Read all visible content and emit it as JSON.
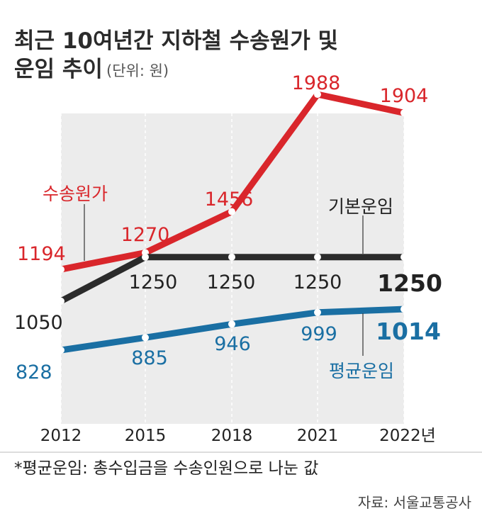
{
  "title_line1": "최근 10여년간 지하철 수송원가 및",
  "title_line2": "운임 추이",
  "unit": "(단위: 원)",
  "chart_data": {
    "type": "line",
    "x": [
      "2012",
      "2015",
      "2018",
      "2021",
      "2022년"
    ],
    "series": [
      {
        "name": "수송원가",
        "color": "#d9262b",
        "values": [
          1194,
          1270,
          1456,
          1988,
          1904
        ],
        "labels": [
          "1194",
          "1270",
          "1456",
          "1988",
          "1904"
        ]
      },
      {
        "name": "기본운임",
        "color": "#2b2b2b",
        "values": [
          1050,
          1250,
          1250,
          1250,
          1250
        ],
        "labels": [
          "1050",
          "1250",
          "1250",
          "1250",
          "1250"
        ]
      },
      {
        "name": "평균운임",
        "color": "#1a6fa3",
        "values": [
          828,
          885,
          946,
          999,
          1014
        ],
        "labels": [
          "828",
          "885",
          "946",
          "999",
          "1014"
        ]
      }
    ]
  },
  "footnote": "*평균운임: 총수입금을 수송인원으로 나눈 값",
  "source": "자료: 서울교통공사"
}
